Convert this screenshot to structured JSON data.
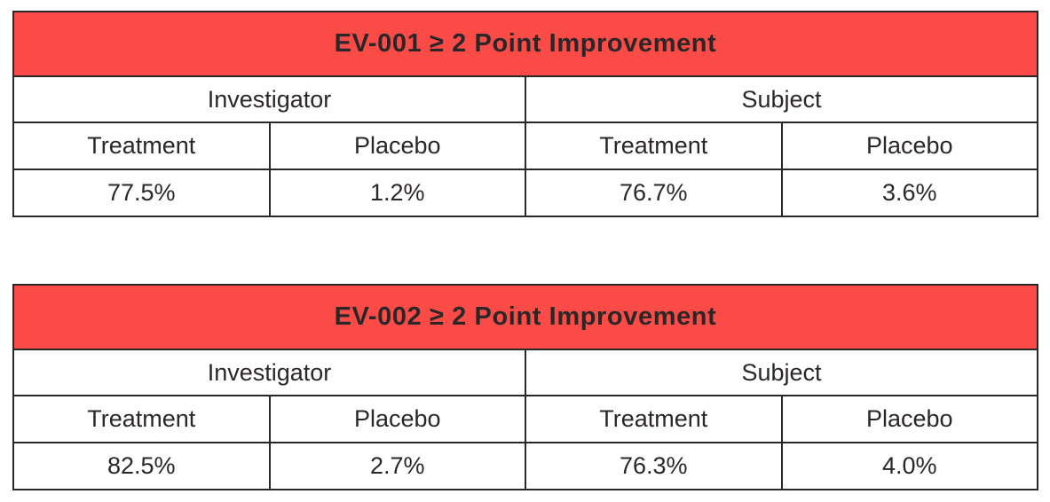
{
  "colors": {
    "accent": "#fa4b46",
    "accent_text": "#ffffff",
    "border": "#282828",
    "text": "#2b2728",
    "background": "#ffffff"
  },
  "chart_data": [
    {
      "type": "table",
      "title": "EV-001 ≥ 2 Point Improvement",
      "column_groups": [
        {
          "label": "Investigator",
          "span": 2
        },
        {
          "label": "Subject",
          "span": 2
        }
      ],
      "columns": [
        "Treatment",
        "Placebo",
        "Treatment",
        "Placebo"
      ],
      "rows": [
        [
          "77.5%",
          "1.2%",
          "76.7%",
          "3.6%"
        ]
      ],
      "values_numeric": [
        77.5,
        1.2,
        76.7,
        3.6
      ],
      "layout": {
        "title_bar": "red",
        "grid": "on",
        "columns_equal_width": true
      }
    },
    {
      "type": "table",
      "title": "EV-002 ≥ 2 Point Improvement",
      "column_groups": [
        {
          "label": "Investigator",
          "span": 2
        },
        {
          "label": "Subject",
          "span": 2
        }
      ],
      "columns": [
        "Treatment",
        "Placebo",
        "Treatment",
        "Placebo"
      ],
      "rows": [
        [
          "82.5%",
          "2.7%",
          "76.3%",
          "4.0%"
        ]
      ],
      "values_numeric": [
        82.5,
        2.7,
        76.3,
        4.0
      ],
      "layout": {
        "title_bar": "red",
        "grid": "on",
        "columns_equal_width": true
      }
    }
  ]
}
